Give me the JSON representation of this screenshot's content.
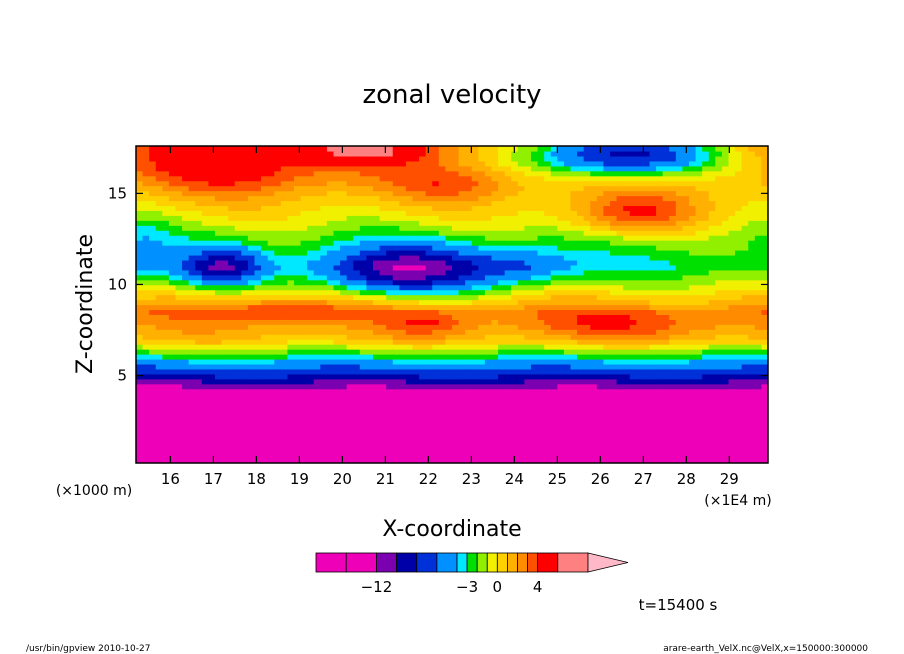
{
  "chart_data": {
    "type": "heatmap",
    "title": "zonal velocity",
    "xlabel": "X-coordinate",
    "ylabel": "Z-coordinate",
    "x_unit": "(×1E4 m)",
    "y_unit": "(×1000 m)",
    "xlim": [
      15.2,
      29.9
    ],
    "ylim": [
      0.2,
      17.6
    ],
    "x_ticks": [
      16,
      17,
      18,
      19,
      20,
      21,
      22,
      23,
      24,
      25,
      26,
      27,
      28,
      29
    ],
    "y_ticks": [
      5,
      10,
      15
    ],
    "time_label": "t=15400 s",
    "colorbar": {
      "labels": [
        -12,
        -3,
        0,
        4
      ],
      "boundaries": [
        -18,
        -15,
        -12,
        -10,
        -8,
        -6,
        -4,
        -3,
        -2,
        -1,
        0,
        1,
        2,
        3,
        4,
        6,
        9
      ],
      "colors": [
        "#ee00b8",
        "#ee00b8",
        "#7a00b0",
        "#0000a8",
        "#0030d8",
        "#0090ff",
        "#00e8ff",
        "#00e000",
        "#90f000",
        "#f0f000",
        "#ffd000",
        "#ffb000",
        "#ff8c00",
        "#ff5000",
        "#ff0000",
        "#ff8080",
        "#ffb8c8"
      ]
    },
    "field": {
      "baseline": [
        {
          "z": 0.2,
          "u": -16
        },
        {
          "z": 2,
          "u": -16
        },
        {
          "z": 4,
          "u": -14
        },
        {
          "z": 5,
          "u": -8
        },
        {
          "z": 6,
          "u": -3
        },
        {
          "z": 7,
          "u": 1
        },
        {
          "z": 8.5,
          "u": 2.5
        },
        {
          "z": 10,
          "u": -1
        },
        {
          "z": 11,
          "u": -3
        },
        {
          "z": 12.5,
          "u": -2
        },
        {
          "z": 14,
          "u": 0
        },
        {
          "z": 15.5,
          "u": 1.5
        },
        {
          "z": 17.6,
          "u": 2.5
        }
      ],
      "features": [
        {
          "x": 17.2,
          "z": 11.0,
          "amp": -7,
          "rx": 0.9,
          "rz": 1.0
        },
        {
          "x": 21.5,
          "z": 10.8,
          "amp": -9,
          "rx": 1.8,
          "rz": 1.3
        },
        {
          "x": 24.2,
          "z": 11.0,
          "amp": -3,
          "rx": 1.2,
          "rz": 1.0
        },
        {
          "x": 26.5,
          "z": 17.2,
          "amp": -11,
          "rx": 2.2,
          "rz": 1.2
        },
        {
          "x": 26.8,
          "z": 13.8,
          "amp": 4,
          "rx": 1.5,
          "rz": 1.2
        },
        {
          "x": 17.5,
          "z": 16.5,
          "amp": 3,
          "rx": 2.5,
          "rz": 1.5
        },
        {
          "x": 20.5,
          "z": 17.4,
          "amp": 3.5,
          "rx": 1.5,
          "rz": 0.8
        },
        {
          "x": 22.5,
          "z": 15.5,
          "amp": 2,
          "rx": 1.5,
          "rz": 1.0
        },
        {
          "x": 18.5,
          "z": 8.6,
          "amp": 2,
          "rx": 1.8,
          "rz": 0.8
        },
        {
          "x": 22.0,
          "z": 7.9,
          "amp": 2,
          "rx": 1.0,
          "rz": 0.7
        },
        {
          "x": 26.5,
          "z": 7.8,
          "amp": 2,
          "rx": 2.5,
          "rz": 0.8
        },
        {
          "x": 15.3,
          "z": 12.0,
          "amp": -2,
          "rx": 0.8,
          "rz": 2.0
        }
      ]
    }
  },
  "footer": {
    "left": "/usr/bin/gpview   2010-10-27",
    "right": "arare-earth_VelX.nc@VelX,x=150000:300000"
  }
}
